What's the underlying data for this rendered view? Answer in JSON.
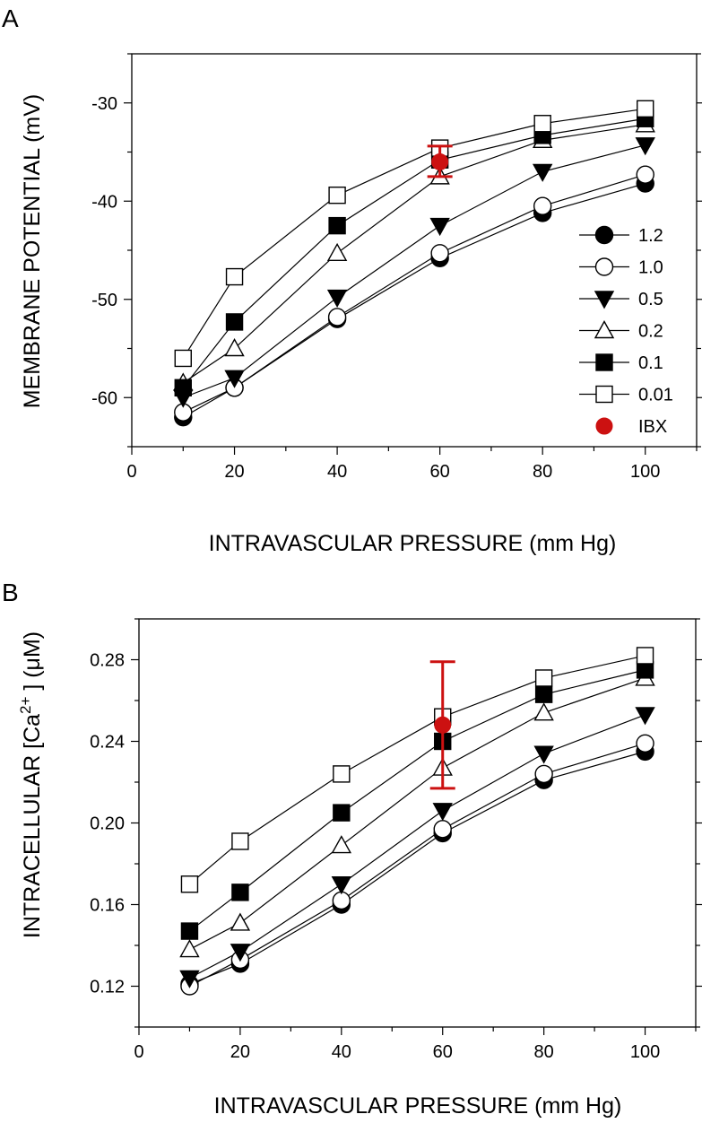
{
  "chart_data": [
    {
      "panel": "A",
      "type": "line",
      "xlabel": "INTRAVASCULAR PRESSURE (mm Hg)",
      "ylabel": "MEMBRANE  POTENTIAL (mV)",
      "xlim": [
        0,
        110
      ],
      "ylim": [
        -65,
        -25
      ],
      "xticks": [
        0,
        20,
        40,
        60,
        80,
        100
      ],
      "yticks": [
        -60,
        -50,
        -40,
        -30
      ],
      "x": [
        10,
        20,
        40,
        60,
        80,
        100
      ],
      "legend_position": "right",
      "series": [
        {
          "name": "1.2",
          "marker": "circle",
          "fill": "filled",
          "values": [
            -62.0,
            -59.0,
            -52.0,
            -45.8,
            -41.2,
            -38.2
          ]
        },
        {
          "name": "1.0",
          "marker": "circle",
          "fill": "open",
          "values": [
            -61.5,
            -59.0,
            -51.8,
            -45.3,
            -40.5,
            -37.3
          ]
        },
        {
          "name": "0.5",
          "marker": "triangle-down",
          "fill": "filled",
          "values": [
            -60.0,
            -58.0,
            -49.8,
            -42.5,
            -37.0,
            -34.3
          ]
        },
        {
          "name": "0.2",
          "marker": "triangle-up",
          "fill": "open",
          "values": [
            -58.5,
            -55.0,
            -45.3,
            -37.5,
            -33.8,
            -32.2
          ]
        },
        {
          "name": "0.1",
          "marker": "square",
          "fill": "filled",
          "values": [
            -59.0,
            -52.3,
            -42.5,
            -35.8,
            -33.3,
            -31.6
          ]
        },
        {
          "name": "0.01",
          "marker": "square",
          "fill": "open",
          "values": [
            -56.0,
            -47.7,
            -39.4,
            -34.6,
            -32.1,
            -30.6
          ]
        }
      ],
      "ibx": {
        "name": "IBX",
        "x": 60,
        "y": -36.0,
        "err_low": -37.5,
        "err_high": -34.4,
        "color": "#cc1111"
      }
    },
    {
      "panel": "B",
      "type": "line",
      "xlabel": "INTRAVASCULAR PRESSURE (mm Hg)",
      "ylabel_pre": "INTRACELLULAR [Ca",
      "ylabel_sup": "2+",
      "ylabel_post": " ] (μM)",
      "xlim": [
        0,
        110
      ],
      "ylim": [
        0.1,
        0.3
      ],
      "xticks": [
        0,
        20,
        40,
        60,
        80,
        100
      ],
      "yticks": [
        0.12,
        0.16,
        0.2,
        0.24,
        0.28
      ],
      "ytick_labels": [
        "0.12",
        "0.16",
        "0.20",
        "0.24",
        "0.28"
      ],
      "x": [
        10,
        20,
        40,
        60,
        80,
        100
      ],
      "series": [
        {
          "name": "1.2",
          "marker": "circle",
          "fill": "filled",
          "values": [
            0.121,
            0.131,
            0.16,
            0.195,
            0.221,
            0.235
          ]
        },
        {
          "name": "1.0",
          "marker": "circle",
          "fill": "open",
          "values": [
            0.12,
            0.133,
            0.162,
            0.197,
            0.224,
            0.239
          ]
        },
        {
          "name": "0.5",
          "marker": "triangle-down",
          "fill": "filled",
          "values": [
            0.124,
            0.137,
            0.17,
            0.206,
            0.234,
            0.253
          ]
        },
        {
          "name": "0.2",
          "marker": "triangle-up",
          "fill": "open",
          "values": [
            0.138,
            0.151,
            0.189,
            0.227,
            0.254,
            0.271
          ]
        },
        {
          "name": "0.1",
          "marker": "square",
          "fill": "filled",
          "values": [
            0.147,
            0.166,
            0.205,
            0.24,
            0.263,
            0.275
          ]
        },
        {
          "name": "0.01",
          "marker": "square",
          "fill": "open",
          "values": [
            0.17,
            0.191,
            0.224,
            0.252,
            0.271,
            0.282
          ]
        }
      ],
      "ibx": {
        "name": "IBX",
        "x": 60,
        "y": 0.248,
        "err_low": 0.217,
        "err_high": 0.279,
        "color": "#cc1111"
      }
    }
  ]
}
